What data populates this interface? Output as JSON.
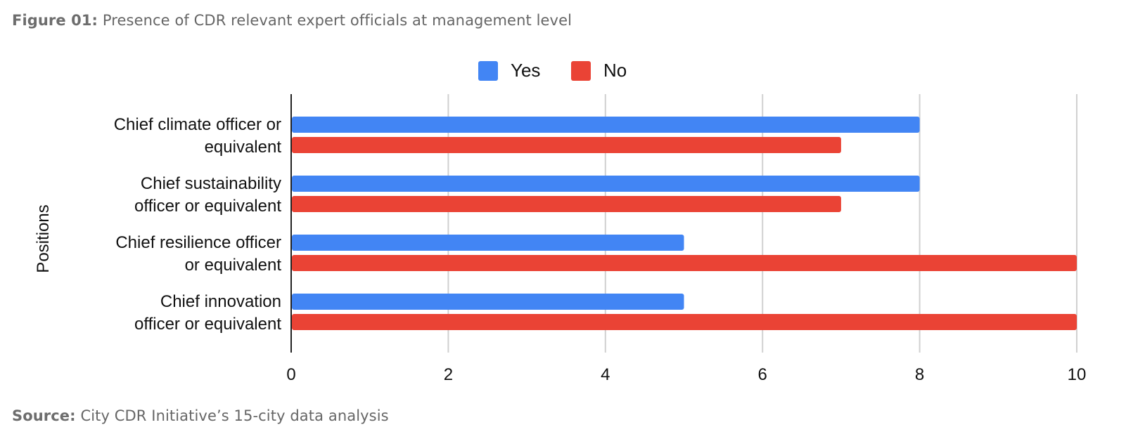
{
  "figure": {
    "label": "Figure 01:",
    "title": "Presence of CDR relevant expert officials at management level"
  },
  "source": {
    "label": "Source:",
    "text": "City CDR Initiative’s 15-city data analysis"
  },
  "chart_data": {
    "type": "bar",
    "orientation": "horizontal",
    "ylabel": "Positions",
    "xlabel": "",
    "xlim": [
      0,
      10
    ],
    "xticks": [
      0,
      2,
      4,
      6,
      8,
      10
    ],
    "grid": true,
    "legend_position": "top",
    "categories": [
      [
        "Chief climate officer or",
        "equivalent"
      ],
      [
        "Chief sustainability",
        "officer or equivalent"
      ],
      [
        "Chief resilience officer",
        "or equivalent"
      ],
      [
        "Chief innovation",
        "officer or equivalent"
      ]
    ],
    "series": [
      {
        "name": "Yes",
        "color": "#4285f4",
        "values": [
          8,
          8,
          5,
          5
        ]
      },
      {
        "name": "No",
        "color": "#ea4335",
        "values": [
          7,
          7,
          10,
          10
        ]
      }
    ]
  }
}
